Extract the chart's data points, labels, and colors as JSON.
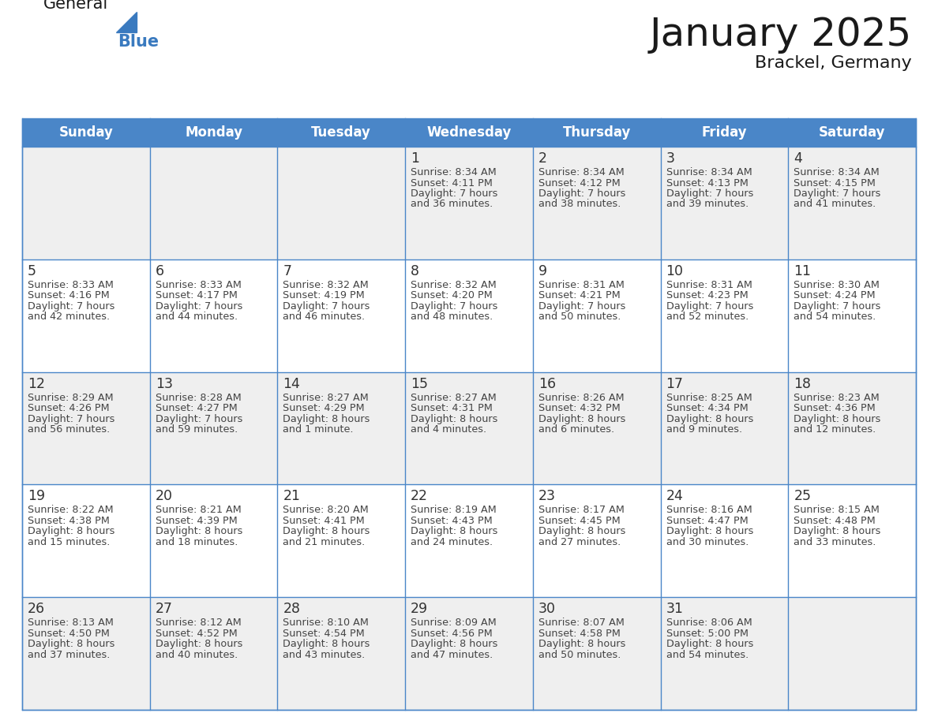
{
  "title": "January 2025",
  "subtitle": "Brackel, Germany",
  "days_of_week": [
    "Sunday",
    "Monday",
    "Tuesday",
    "Wednesday",
    "Thursday",
    "Friday",
    "Saturday"
  ],
  "header_bg": "#4a86c8",
  "header_text": "#ffffff",
  "row_bg_odd": "#efefef",
  "row_bg_even": "#ffffff",
  "grid_color": "#4a86c8",
  "day_number_color": "#333333",
  "text_color": "#444444",
  "title_color": "#1a1a1a",
  "logo_general_color": "#1a1a1a",
  "logo_blue_color": "#3a7abf",
  "logo_triangle_color": "#3a7abf",
  "calendar_data": [
    [
      {
        "day": null,
        "sunrise": null,
        "sunset": null,
        "daylight": ""
      },
      {
        "day": null,
        "sunrise": null,
        "sunset": null,
        "daylight": ""
      },
      {
        "day": null,
        "sunrise": null,
        "sunset": null,
        "daylight": ""
      },
      {
        "day": 1,
        "sunrise": "8:34 AM",
        "sunset": "4:11 PM",
        "daylight": "7 hours",
        "daylight2": "and 36 minutes."
      },
      {
        "day": 2,
        "sunrise": "8:34 AM",
        "sunset": "4:12 PM",
        "daylight": "7 hours",
        "daylight2": "and 38 minutes."
      },
      {
        "day": 3,
        "sunrise": "8:34 AM",
        "sunset": "4:13 PM",
        "daylight": "7 hours",
        "daylight2": "and 39 minutes."
      },
      {
        "day": 4,
        "sunrise": "8:34 AM",
        "sunset": "4:15 PM",
        "daylight": "7 hours",
        "daylight2": "and 41 minutes."
      }
    ],
    [
      {
        "day": 5,
        "sunrise": "8:33 AM",
        "sunset": "4:16 PM",
        "daylight": "7 hours",
        "daylight2": "and 42 minutes."
      },
      {
        "day": 6,
        "sunrise": "8:33 AM",
        "sunset": "4:17 PM",
        "daylight": "7 hours",
        "daylight2": "and 44 minutes."
      },
      {
        "day": 7,
        "sunrise": "8:32 AM",
        "sunset": "4:19 PM",
        "daylight": "7 hours",
        "daylight2": "and 46 minutes."
      },
      {
        "day": 8,
        "sunrise": "8:32 AM",
        "sunset": "4:20 PM",
        "daylight": "7 hours",
        "daylight2": "and 48 minutes."
      },
      {
        "day": 9,
        "sunrise": "8:31 AM",
        "sunset": "4:21 PM",
        "daylight": "7 hours",
        "daylight2": "and 50 minutes."
      },
      {
        "day": 10,
        "sunrise": "8:31 AM",
        "sunset": "4:23 PM",
        "daylight": "7 hours",
        "daylight2": "and 52 minutes."
      },
      {
        "day": 11,
        "sunrise": "8:30 AM",
        "sunset": "4:24 PM",
        "daylight": "7 hours",
        "daylight2": "and 54 minutes."
      }
    ],
    [
      {
        "day": 12,
        "sunrise": "8:29 AM",
        "sunset": "4:26 PM",
        "daylight": "7 hours",
        "daylight2": "and 56 minutes."
      },
      {
        "day": 13,
        "sunrise": "8:28 AM",
        "sunset": "4:27 PM",
        "daylight": "7 hours",
        "daylight2": "and 59 minutes."
      },
      {
        "day": 14,
        "sunrise": "8:27 AM",
        "sunset": "4:29 PM",
        "daylight": "8 hours",
        "daylight2": "and 1 minute."
      },
      {
        "day": 15,
        "sunrise": "8:27 AM",
        "sunset": "4:31 PM",
        "daylight": "8 hours",
        "daylight2": "and 4 minutes."
      },
      {
        "day": 16,
        "sunrise": "8:26 AM",
        "sunset": "4:32 PM",
        "daylight": "8 hours",
        "daylight2": "and 6 minutes."
      },
      {
        "day": 17,
        "sunrise": "8:25 AM",
        "sunset": "4:34 PM",
        "daylight": "8 hours",
        "daylight2": "and 9 minutes."
      },
      {
        "day": 18,
        "sunrise": "8:23 AM",
        "sunset": "4:36 PM",
        "daylight": "8 hours",
        "daylight2": "and 12 minutes."
      }
    ],
    [
      {
        "day": 19,
        "sunrise": "8:22 AM",
        "sunset": "4:38 PM",
        "daylight": "8 hours",
        "daylight2": "and 15 minutes."
      },
      {
        "day": 20,
        "sunrise": "8:21 AM",
        "sunset": "4:39 PM",
        "daylight": "8 hours",
        "daylight2": "and 18 minutes."
      },
      {
        "day": 21,
        "sunrise": "8:20 AM",
        "sunset": "4:41 PM",
        "daylight": "8 hours",
        "daylight2": "and 21 minutes."
      },
      {
        "day": 22,
        "sunrise": "8:19 AM",
        "sunset": "4:43 PM",
        "daylight": "8 hours",
        "daylight2": "and 24 minutes."
      },
      {
        "day": 23,
        "sunrise": "8:17 AM",
        "sunset": "4:45 PM",
        "daylight": "8 hours",
        "daylight2": "and 27 minutes."
      },
      {
        "day": 24,
        "sunrise": "8:16 AM",
        "sunset": "4:47 PM",
        "daylight": "8 hours",
        "daylight2": "and 30 minutes."
      },
      {
        "day": 25,
        "sunrise": "8:15 AM",
        "sunset": "4:48 PM",
        "daylight": "8 hours",
        "daylight2": "and 33 minutes."
      }
    ],
    [
      {
        "day": 26,
        "sunrise": "8:13 AM",
        "sunset": "4:50 PM",
        "daylight": "8 hours",
        "daylight2": "and 37 minutes."
      },
      {
        "day": 27,
        "sunrise": "8:12 AM",
        "sunset": "4:52 PM",
        "daylight": "8 hours",
        "daylight2": "and 40 minutes."
      },
      {
        "day": 28,
        "sunrise": "8:10 AM",
        "sunset": "4:54 PM",
        "daylight": "8 hours",
        "daylight2": "and 43 minutes."
      },
      {
        "day": 29,
        "sunrise": "8:09 AM",
        "sunset": "4:56 PM",
        "daylight": "8 hours",
        "daylight2": "and 47 minutes."
      },
      {
        "day": 30,
        "sunrise": "8:07 AM",
        "sunset": "4:58 PM",
        "daylight": "8 hours",
        "daylight2": "and 50 minutes."
      },
      {
        "day": 31,
        "sunrise": "8:06 AM",
        "sunset": "5:00 PM",
        "daylight": "8 hours",
        "daylight2": "and 54 minutes."
      },
      {
        "day": null,
        "sunrise": null,
        "sunset": null,
        "daylight": "",
        "daylight2": ""
      }
    ]
  ]
}
